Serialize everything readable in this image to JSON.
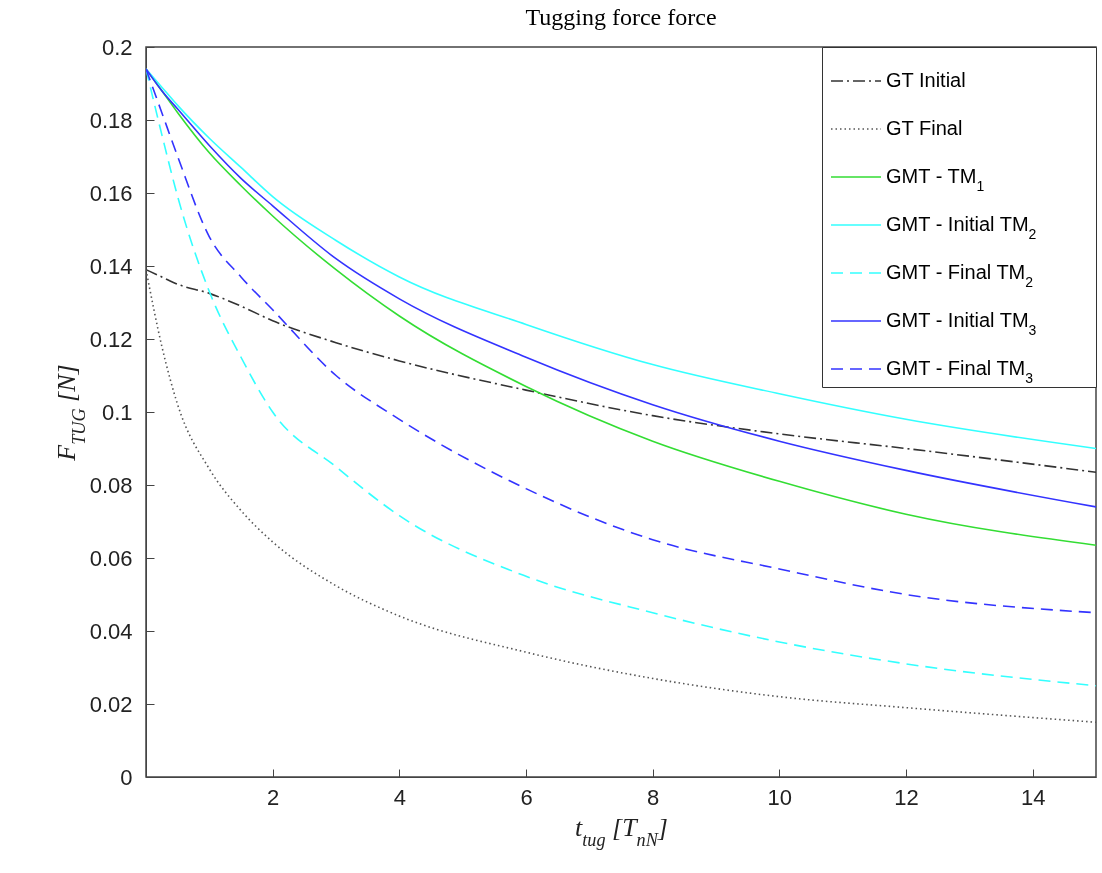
{
  "chart_data": {
    "type": "line",
    "title": "Tugging force force",
    "xlabel": "t$_{tug}$ [T$_{nN}$]",
    "ylabel": "F$_{TUG}$ [N]",
    "x": [
      0,
      0.25,
      0.5,
      1,
      1.5,
      2,
      3,
      4,
      6,
      8,
      10,
      12,
      15
    ],
    "series": [
      {
        "name": "GT Initial",
        "color": "#333333",
        "line_style": "dashdot",
        "values": [
          0.139,
          0.137,
          0.135,
          0.1325,
          0.129,
          0.125,
          0.119,
          0.114,
          0.106,
          0.099,
          0.094,
          0.09,
          0.0835
        ]
      },
      {
        "name": "GT Final",
        "color": "#555555",
        "line_style": "dotted",
        "values": [
          0.139,
          0.118,
          0.102,
          0.0844,
          0.073,
          0.0644,
          0.0524,
          0.0441,
          0.0342,
          0.027,
          0.022,
          0.019,
          0.015
        ]
      },
      {
        "name": "GMT - TM$_{1}$",
        "color": "#33dd33",
        "line_style": "solid",
        "values": [
          0.194,
          0.188,
          0.182,
          0.171,
          0.162,
          0.1537,
          0.139,
          0.1263,
          0.107,
          0.092,
          0.081,
          0.072,
          0.0635
        ]
      },
      {
        "name": "GMT - Initial TM$_{2}$",
        "color": "#33ffff",
        "line_style": "solid",
        "values": [
          0.194,
          0.189,
          0.184,
          0.175,
          0.167,
          0.159,
          0.147,
          0.137,
          0.124,
          0.113,
          0.105,
          0.098,
          0.09
        ]
      },
      {
        "name": "GMT - Final TM$_{2}$",
        "color": "#33ffff",
        "line_style": "dashed",
        "values": [
          0.194,
          0.176,
          0.159,
          0.133,
          0.115,
          0.1,
          0.085,
          0.0716,
          0.055,
          0.045,
          0.037,
          0.031,
          0.025
        ]
      },
      {
        "name": "GMT - Initial TM$_{3}$",
        "color": "#3333ff",
        "line_style": "solid",
        "values": [
          0.194,
          0.188,
          0.183,
          0.173,
          0.164,
          0.1565,
          0.142,
          0.131,
          0.115,
          0.102,
          0.092,
          0.084,
          0.074
        ]
      },
      {
        "name": "GMT - Final TM$_{3}$",
        "color": "#3333ff",
        "line_style": "dashed",
        "values": [
          0.194,
          0.182,
          0.17,
          0.148,
          0.137,
          0.128,
          0.11,
          0.098,
          0.079,
          0.065,
          0.057,
          0.05,
          0.045
        ]
      }
    ],
    "xlim": [
      0,
      15
    ],
    "xticks": [
      2,
      4,
      6,
      8,
      10,
      12,
      14
    ],
    "ylim": [
      0,
      0.2
    ],
    "yticks": [
      0,
      0.02,
      0.04,
      0.06,
      0.08,
      0.1,
      0.12,
      0.14,
      0.16,
      0.18,
      0.2
    ],
    "legend": "top right",
    "grid": false
  }
}
